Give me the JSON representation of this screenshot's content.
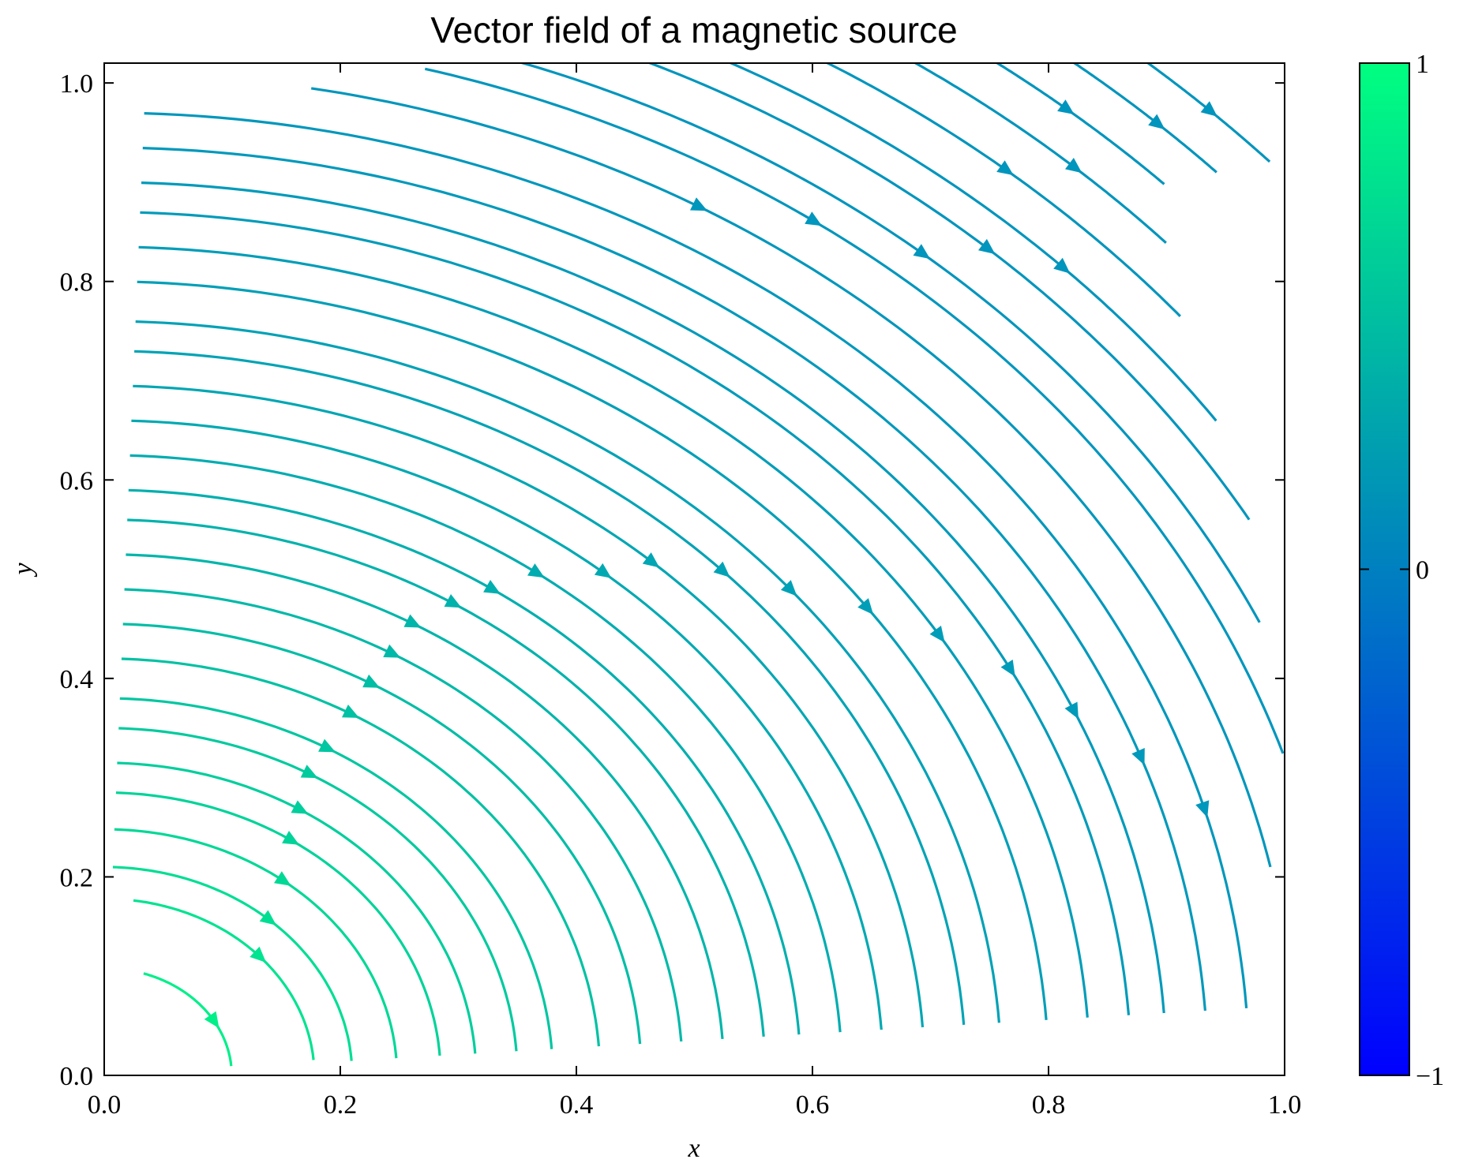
{
  "chart_data": {
    "type": "streamplot",
    "title": "Vector field of a magnetic source",
    "xlabel": "x",
    "ylabel": "y",
    "xlim": [
      0.0,
      1.0
    ],
    "ylim": [
      0.0,
      1.02
    ],
    "x_ticks": [
      "0.0",
      "0.2",
      "0.4",
      "0.6",
      "0.8",
      "1.0"
    ],
    "y_ticks": [
      "0.0",
      "0.2",
      "0.4",
      "0.6",
      "0.8",
      "1.0"
    ],
    "x_tick_values": [
      0.0,
      0.2,
      0.4,
      0.6,
      0.8,
      1.0
    ],
    "y_tick_values": [
      0.0,
      0.2,
      0.4,
      0.6,
      0.8,
      1.0
    ],
    "field_direction": "clockwise arcs centred at the origin",
    "colormap": "winter",
    "colorbar": {
      "range": [
        -1,
        1
      ],
      "ticks": [
        "1",
        "0",
        "−1"
      ],
      "tick_values": [
        1,
        0,
        -1
      ],
      "color_low": "#0000ff",
      "color_high": "#00ff80"
    },
    "grid": false,
    "streamlines": [
      {
        "radius": 0.108,
        "start_angle": 72,
        "end_angle": 5,
        "arrow_angle": 30
      },
      {
        "radius": 0.178,
        "start_angle": 82,
        "end_angle": 5,
        "arrow_angle": 42
      },
      {
        "radius": 0.21,
        "start_angle": 88,
        "end_angle": 4,
        "arrow_angle": 48
      },
      {
        "radius": 0.248,
        "start_angle": 88,
        "end_angle": 4,
        "arrow_angle": 52
      },
      {
        "radius": 0.285,
        "start_angle": 88,
        "end_angle": 4,
        "arrow_angle": 56
      },
      {
        "radius": 0.315,
        "start_angle": 88,
        "end_angle": 4,
        "arrow_angle": 58
      },
      {
        "radius": 0.35,
        "start_angle": 88,
        "end_angle": 4,
        "arrow_angle": 60
      },
      {
        "radius": 0.38,
        "start_angle": 88,
        "end_angle": 4,
        "arrow_angle": 60
      },
      {
        "radius": 0.42,
        "start_angle": 88,
        "end_angle": 4,
        "arrow_angle": 60
      },
      {
        "radius": 0.455,
        "start_angle": 88,
        "end_angle": 4,
        "arrow_angle": 60
      },
      {
        "radius": 0.49,
        "start_angle": 88,
        "end_angle": 4,
        "arrow_angle": 60
      },
      {
        "radius": 0.525,
        "start_angle": 88,
        "end_angle": 4,
        "arrow_angle": 60
      },
      {
        "radius": 0.56,
        "start_angle": 88,
        "end_angle": 4,
        "arrow_angle": 58
      },
      {
        "radius": 0.59,
        "start_angle": 88,
        "end_angle": 4,
        "arrow_angle": 56
      },
      {
        "radius": 0.625,
        "start_angle": 88,
        "end_angle": 4,
        "arrow_angle": 54
      },
      {
        "radius": 0.66,
        "start_angle": 88,
        "end_angle": 4,
        "arrow_angle": 50
      },
      {
        "radius": 0.695,
        "start_angle": 88,
        "end_angle": 4,
        "arrow_angle": 48
      },
      {
        "radius": 0.73,
        "start_angle": 88,
        "end_angle": 4,
        "arrow_angle": 44
      },
      {
        "radius": 0.76,
        "start_angle": 88,
        "end_angle": 4,
        "arrow_angle": 40
      },
      {
        "radius": 0.8,
        "start_angle": 88,
        "end_angle": 4,
        "arrow_angle": 36
      },
      {
        "radius": 0.835,
        "start_angle": 88,
        "end_angle": 4,
        "arrow_angle": 32
      },
      {
        "radius": 0.87,
        "start_angle": 88,
        "end_angle": 4,
        "arrow_angle": 28
      },
      {
        "radius": 0.9,
        "start_angle": 88,
        "end_angle": 4,
        "arrow_angle": 24
      },
      {
        "radius": 0.935,
        "start_angle": 88,
        "end_angle": 4,
        "arrow_angle": 20
      },
      {
        "radius": 0.97,
        "start_angle": 88,
        "end_angle": 4,
        "arrow_angle": 16
      },
      {
        "radius": 1.01,
        "start_angle": 80,
        "end_angle": 12,
        "arrow_angle": 60
      },
      {
        "radius": 1.05,
        "start_angle": 75,
        "end_angle": 18,
        "arrow_angle": 55
      },
      {
        "radius": 1.08,
        "start_angle": 72,
        "end_angle": 25,
        "arrow_angle": 50
      },
      {
        "radius": 1.12,
        "start_angle": 68,
        "end_angle": 30,
        "arrow_angle": 48
      },
      {
        "radius": 1.15,
        "start_angle": 65,
        "end_angle": 35,
        "arrow_angle": 45
      },
      {
        "radius": 1.19,
        "start_angle": 60,
        "end_angle": 40,
        "arrow_angle": 50
      },
      {
        "radius": 1.23,
        "start_angle": 58,
        "end_angle": 43,
        "arrow_angle": 48
      },
      {
        "radius": 1.27,
        "start_angle": 55,
        "end_angle": 45,
        "arrow_angle": 50
      },
      {
        "radius": 1.31,
        "start_angle": 52,
        "end_angle": 44,
        "arrow_angle": 47
      },
      {
        "radius": 1.35,
        "start_angle": 50,
        "end_angle": 43,
        "arrow_angle": 46
      }
    ]
  }
}
